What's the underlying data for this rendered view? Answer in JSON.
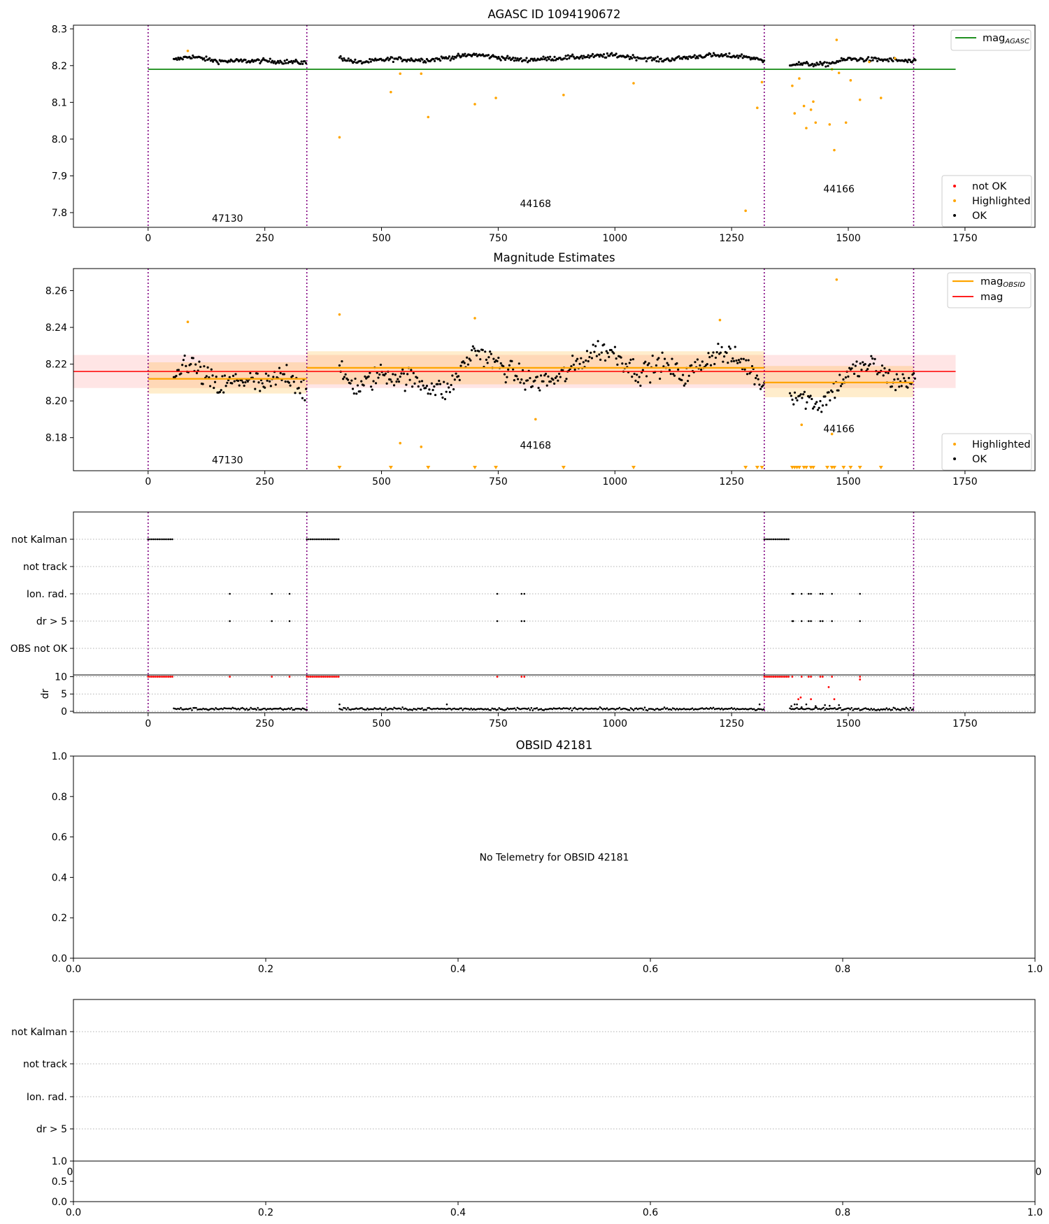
{
  "chart_data": [
    {
      "id": "agasc",
      "type": "scatter",
      "title": "AGASC ID 1094190672",
      "xlim": [
        -160,
        1900
      ],
      "ylim": [
        7.76,
        8.31
      ],
      "xticks": [
        0,
        250,
        500,
        750,
        1000,
        1250,
        1500,
        1750
      ],
      "yticks": [
        7.8,
        7.9,
        8.0,
        8.1,
        8.2,
        8.3
      ],
      "ytick_labels": [
        "7.8",
        "7.9",
        "8.0",
        "8.1",
        "8.2",
        "8.3"
      ],
      "grid": false,
      "obsid_boundaries": [
        0,
        340,
        1320,
        1640
      ],
      "obsid_labels": [
        {
          "text": "47130",
          "x": 170,
          "y": 7.775
        },
        {
          "text": "44168",
          "x": 830,
          "y": 7.815
        },
        {
          "text": "44166",
          "x": 1480,
          "y": 7.855
        }
      ],
      "reference_line": {
        "name": "mag",
        "subscript": "AGASC",
        "y": 8.19,
        "x_range": [
          0,
          1730
        ],
        "color": "#008000"
      },
      "line_legend_position": "top-right",
      "marker_legend_position": "bottom-right",
      "marker_legend": [
        {
          "label": "not OK",
          "color": "#ff0000"
        },
        {
          "label": "Highlighted",
          "color": "#ffa500"
        },
        {
          "label": "OK",
          "color": "#000000"
        }
      ],
      "ok_segments": [
        {
          "x0": 55,
          "x1": 340,
          "knots": [
            [
              55,
              8.215
            ],
            [
              90,
              8.225
            ],
            [
              150,
              8.212
            ],
            [
              250,
              8.213
            ],
            [
              340,
              8.208
            ]
          ],
          "noise": 0.006
        },
        {
          "x0": 410,
          "x1": 1320,
          "knots": [
            [
              410,
              8.222
            ],
            [
              450,
              8.208
            ],
            [
              520,
              8.218
            ],
            [
              600,
              8.215
            ],
            [
              700,
              8.23
            ],
            [
              800,
              8.215
            ],
            [
              900,
              8.222
            ],
            [
              1000,
              8.228
            ],
            [
              1100,
              8.215
            ],
            [
              1200,
              8.228
            ],
            [
              1280,
              8.225
            ],
            [
              1320,
              8.212
            ]
          ],
          "noise": 0.006
        },
        {
          "x0": 1375,
          "x1": 1645,
          "knots": [
            [
              1375,
              8.205
            ],
            [
              1450,
              8.203
            ],
            [
              1500,
              8.218
            ],
            [
              1600,
              8.215
            ],
            [
              1645,
              8.21
            ]
          ],
          "noise": 0.006
        }
      ],
      "highlighted": [
        [
          85,
          8.24
        ],
        [
          410,
          8.005
        ],
        [
          520,
          8.128
        ],
        [
          540,
          8.178
        ],
        [
          585,
          8.178
        ],
        [
          600,
          8.06
        ],
        [
          700,
          8.095
        ],
        [
          745,
          8.112
        ],
        [
          890,
          8.12
        ],
        [
          1040,
          8.152
        ],
        [
          1280,
          7.805
        ],
        [
          1305,
          8.085
        ],
        [
          1315,
          8.155
        ],
        [
          1380,
          8.145
        ],
        [
          1385,
          8.07
        ],
        [
          1395,
          8.165
        ],
        [
          1405,
          8.09
        ],
        [
          1410,
          8.03
        ],
        [
          1420,
          8.08
        ],
        [
          1425,
          8.102
        ],
        [
          1430,
          8.045
        ],
        [
          1460,
          8.04
        ],
        [
          1465,
          8.19
        ],
        [
          1470,
          7.97
        ],
        [
          1475,
          8.27
        ],
        [
          1480,
          8.18
        ],
        [
          1495,
          8.045
        ],
        [
          1505,
          8.16
        ],
        [
          1525,
          8.107
        ],
        [
          1545,
          8.21
        ],
        [
          1570,
          8.112
        ],
        [
          1600,
          8.22
        ]
      ]
    },
    {
      "id": "mag-estimates",
      "type": "scatter",
      "title": "Magnitude Estimates",
      "xlim": [
        -160,
        1900
      ],
      "ylim": [
        8.162,
        8.272
      ],
      "xticks": [
        0,
        250,
        500,
        750,
        1000,
        1250,
        1500,
        1750
      ],
      "yticks": [
        8.18,
        8.2,
        8.22,
        8.24,
        8.26
      ],
      "ytick_labels": [
        "8.18",
        "8.20",
        "8.22",
        "8.24",
        "8.26"
      ],
      "grid": false,
      "obsid_boundaries": [
        0,
        340,
        1320,
        1640
      ],
      "obsid_labels": [
        {
          "text": "47130",
          "x": 170,
          "y": 8.166
        },
        {
          "text": "44168",
          "x": 830,
          "y": 8.174
        },
        {
          "text": "44166",
          "x": 1480,
          "y": 8.183
        }
      ],
      "mag": {
        "name": "mag",
        "y": 8.216,
        "band": [
          8.207,
          8.225
        ],
        "x_range": [
          -160,
          1730
        ],
        "color": "#ff0000",
        "band_color": "#ff0000"
      },
      "mag_obsid": {
        "name": "mag",
        "subscript": "OBSID",
        "color": "#ffa500",
        "segments": [
          {
            "x0": 0,
            "x1": 340,
            "y": 8.212,
            "band": [
              8.204,
              8.221
            ]
          },
          {
            "x0": 340,
            "x1": 1320,
            "y": 8.218,
            "band": [
              8.209,
              8.227
            ]
          },
          {
            "x0": 1320,
            "x1": 1640,
            "y": 8.21,
            "band": [
              8.202,
              8.219
            ]
          }
        ]
      },
      "line_legend_position": "top-right",
      "marker_legend_position": "bottom-right",
      "marker_legend": [
        {
          "label": "Highlighted",
          "color": "#ffa500"
        },
        {
          "label": "OK",
          "color": "#000000"
        }
      ],
      "ok_segments": [
        {
          "x0": 55,
          "x1": 340,
          "knots": [
            [
              55,
              8.21
            ],
            [
              80,
              8.222
            ],
            [
              150,
              8.207
            ],
            [
              200,
              8.212
            ],
            [
              250,
              8.208
            ],
            [
              300,
              8.215
            ],
            [
              340,
              8.205
            ]
          ],
          "noise": 0.007
        },
        {
          "x0": 410,
          "x1": 1320,
          "knots": [
            [
              410,
              8.215
            ],
            [
              450,
              8.207
            ],
            [
              500,
              8.215
            ],
            [
              560,
              8.212
            ],
            [
              640,
              8.205
            ],
            [
              700,
              8.228
            ],
            [
              760,
              8.218
            ],
            [
              820,
              8.21
            ],
            [
              880,
              8.212
            ],
            [
              960,
              8.228
            ],
            [
              1000,
              8.226
            ],
            [
              1050,
              8.215
            ],
            [
              1100,
              8.22
            ],
            [
              1150,
              8.213
            ],
            [
              1220,
              8.227
            ],
            [
              1280,
              8.22
            ],
            [
              1320,
              8.208
            ]
          ],
          "noise": 0.006
        },
        {
          "x0": 1375,
          "x1": 1645,
          "knots": [
            [
              1375,
              8.205
            ],
            [
              1440,
              8.198
            ],
            [
              1500,
              8.215
            ],
            [
              1550,
              8.22
            ],
            [
              1600,
              8.21
            ],
            [
              1645,
              8.212
            ]
          ],
          "noise": 0.006
        }
      ],
      "highlighted": [
        [
          85,
          8.243
        ],
        [
          410,
          8.247
        ],
        [
          540,
          8.177
        ],
        [
          585,
          8.175
        ],
        [
          700,
          8.245
        ],
        [
          830,
          8.19
        ],
        [
          1225,
          8.244
        ],
        [
          1400,
          8.187
        ],
        [
          1465,
          8.182
        ],
        [
          1475,
          8.266
        ]
      ],
      "highlighted_offscale_low": [
        410,
        520,
        600,
        700,
        745,
        890,
        1040,
        1280,
        1305,
        1315,
        1380,
        1385,
        1390,
        1395,
        1405,
        1410,
        1420,
        1425,
        1455,
        1465,
        1470,
        1490,
        1505,
        1525,
        1570
      ]
    },
    {
      "id": "flags",
      "type": "scatter",
      "title": "",
      "xlim": [
        -160,
        1900
      ],
      "xticks": [
        0,
        250,
        500,
        750,
        1000,
        1250,
        1500,
        1750
      ],
      "obsid_boundaries": [
        0,
        340,
        1320,
        1640
      ],
      "flag_rows": [
        "not Kalman",
        "not track",
        "Ion. rad.",
        "dr > 5",
        "OBS not OK"
      ],
      "grid": true,
      "not_kalman_ranges": [
        [
          0,
          55
        ],
        [
          340,
          410
        ],
        [
          1320,
          1375
        ]
      ],
      "ion_rad_points": [
        175,
        265,
        303,
        748,
        800,
        806,
        1380,
        1382,
        1400,
        1415,
        1420,
        1440,
        1445,
        1465,
        1525
      ],
      "dr_gt5_points": [
        175,
        265,
        303,
        748,
        800,
        806,
        1380,
        1382,
        1400,
        1415,
        1420,
        1440,
        1445,
        1465,
        1525
      ],
      "dr_panel": {
        "ylabel": "dr",
        "ylim": [
          -0.4,
          10.5
        ],
        "yticks": [
          0,
          5,
          10
        ],
        "ytick_labels": [
          "0",
          "5",
          "10"
        ],
        "baseline": 0.7,
        "ok_ranges": [
          [
            55,
            340
          ],
          [
            410,
            1320
          ],
          [
            1375,
            1640
          ]
        ],
        "not_ok_ranges": [
          [
            0,
            55
          ],
          [
            340,
            410
          ],
          [
            1320,
            1375
          ]
        ],
        "not_ok_points": [
          [
            175,
            10
          ],
          [
            265,
            10
          ],
          [
            303,
            10
          ],
          [
            748,
            10
          ],
          [
            800,
            10
          ],
          [
            806,
            10
          ],
          [
            1380,
            10
          ],
          [
            1400,
            10
          ],
          [
            1415,
            10
          ],
          [
            1420,
            10
          ],
          [
            1440,
            10
          ],
          [
            1445,
            10
          ],
          [
            1465,
            10
          ],
          [
            1525,
            9.2
          ],
          [
            1525,
            10
          ],
          [
            1393,
            3.5
          ],
          [
            1398,
            4
          ],
          [
            1420,
            3.5
          ],
          [
            1458,
            7
          ],
          [
            1470,
            3.5
          ]
        ],
        "scatter_high": [
          [
            410,
            2
          ],
          [
            640,
            2
          ],
          [
            1310,
            2
          ],
          [
            1378,
            1.5
          ],
          [
            1385,
            2
          ],
          [
            1390,
            2
          ],
          [
            1400,
            1.2
          ],
          [
            1410,
            2
          ],
          [
            1430,
            1.5
          ],
          [
            1450,
            1.8
          ],
          [
            1460,
            1.6
          ],
          [
            1480,
            1.8
          ]
        ]
      }
    },
    {
      "id": "obsid-42181",
      "type": "scatter",
      "title": "OBSID 42181",
      "message": "No Telemetry for OBSID 42181",
      "xlim": [
        0,
        1
      ],
      "ylim": [
        0,
        1
      ],
      "xticks": [
        0,
        0.2,
        0.4,
        0.6,
        0.8,
        1.0
      ],
      "xtick_labels": [
        "0.0",
        "0.2",
        "0.4",
        "0.6",
        "0.8",
        "1.0"
      ],
      "yticks": [
        0,
        0.2,
        0.4,
        0.6,
        0.8,
        1.0
      ],
      "ytick_labels": [
        "0.0",
        "0.2",
        "0.4",
        "0.6",
        "0.8",
        "1.0"
      ]
    },
    {
      "id": "flags-empty",
      "type": "scatter",
      "flag_rows": [
        "not Kalman",
        "not track",
        "Ion. rad.",
        "dr > 5"
      ],
      "grid": true,
      "overlap_xtick_labels": [
        "0",
        "0"
      ],
      "small_panel": {
        "ylim": [
          0,
          1
        ],
        "yticks": [
          0,
          0.5,
          1.0
        ],
        "ytick_labels": [
          "0.0",
          "0.5",
          "1.0"
        ],
        "xticks": [
          0,
          0.2,
          0.4,
          0.6,
          0.8,
          1.0
        ],
        "xtick_labels": [
          "0.0",
          "0.2",
          "0.4",
          "0.6",
          "0.8",
          "1.0"
        ]
      }
    }
  ]
}
